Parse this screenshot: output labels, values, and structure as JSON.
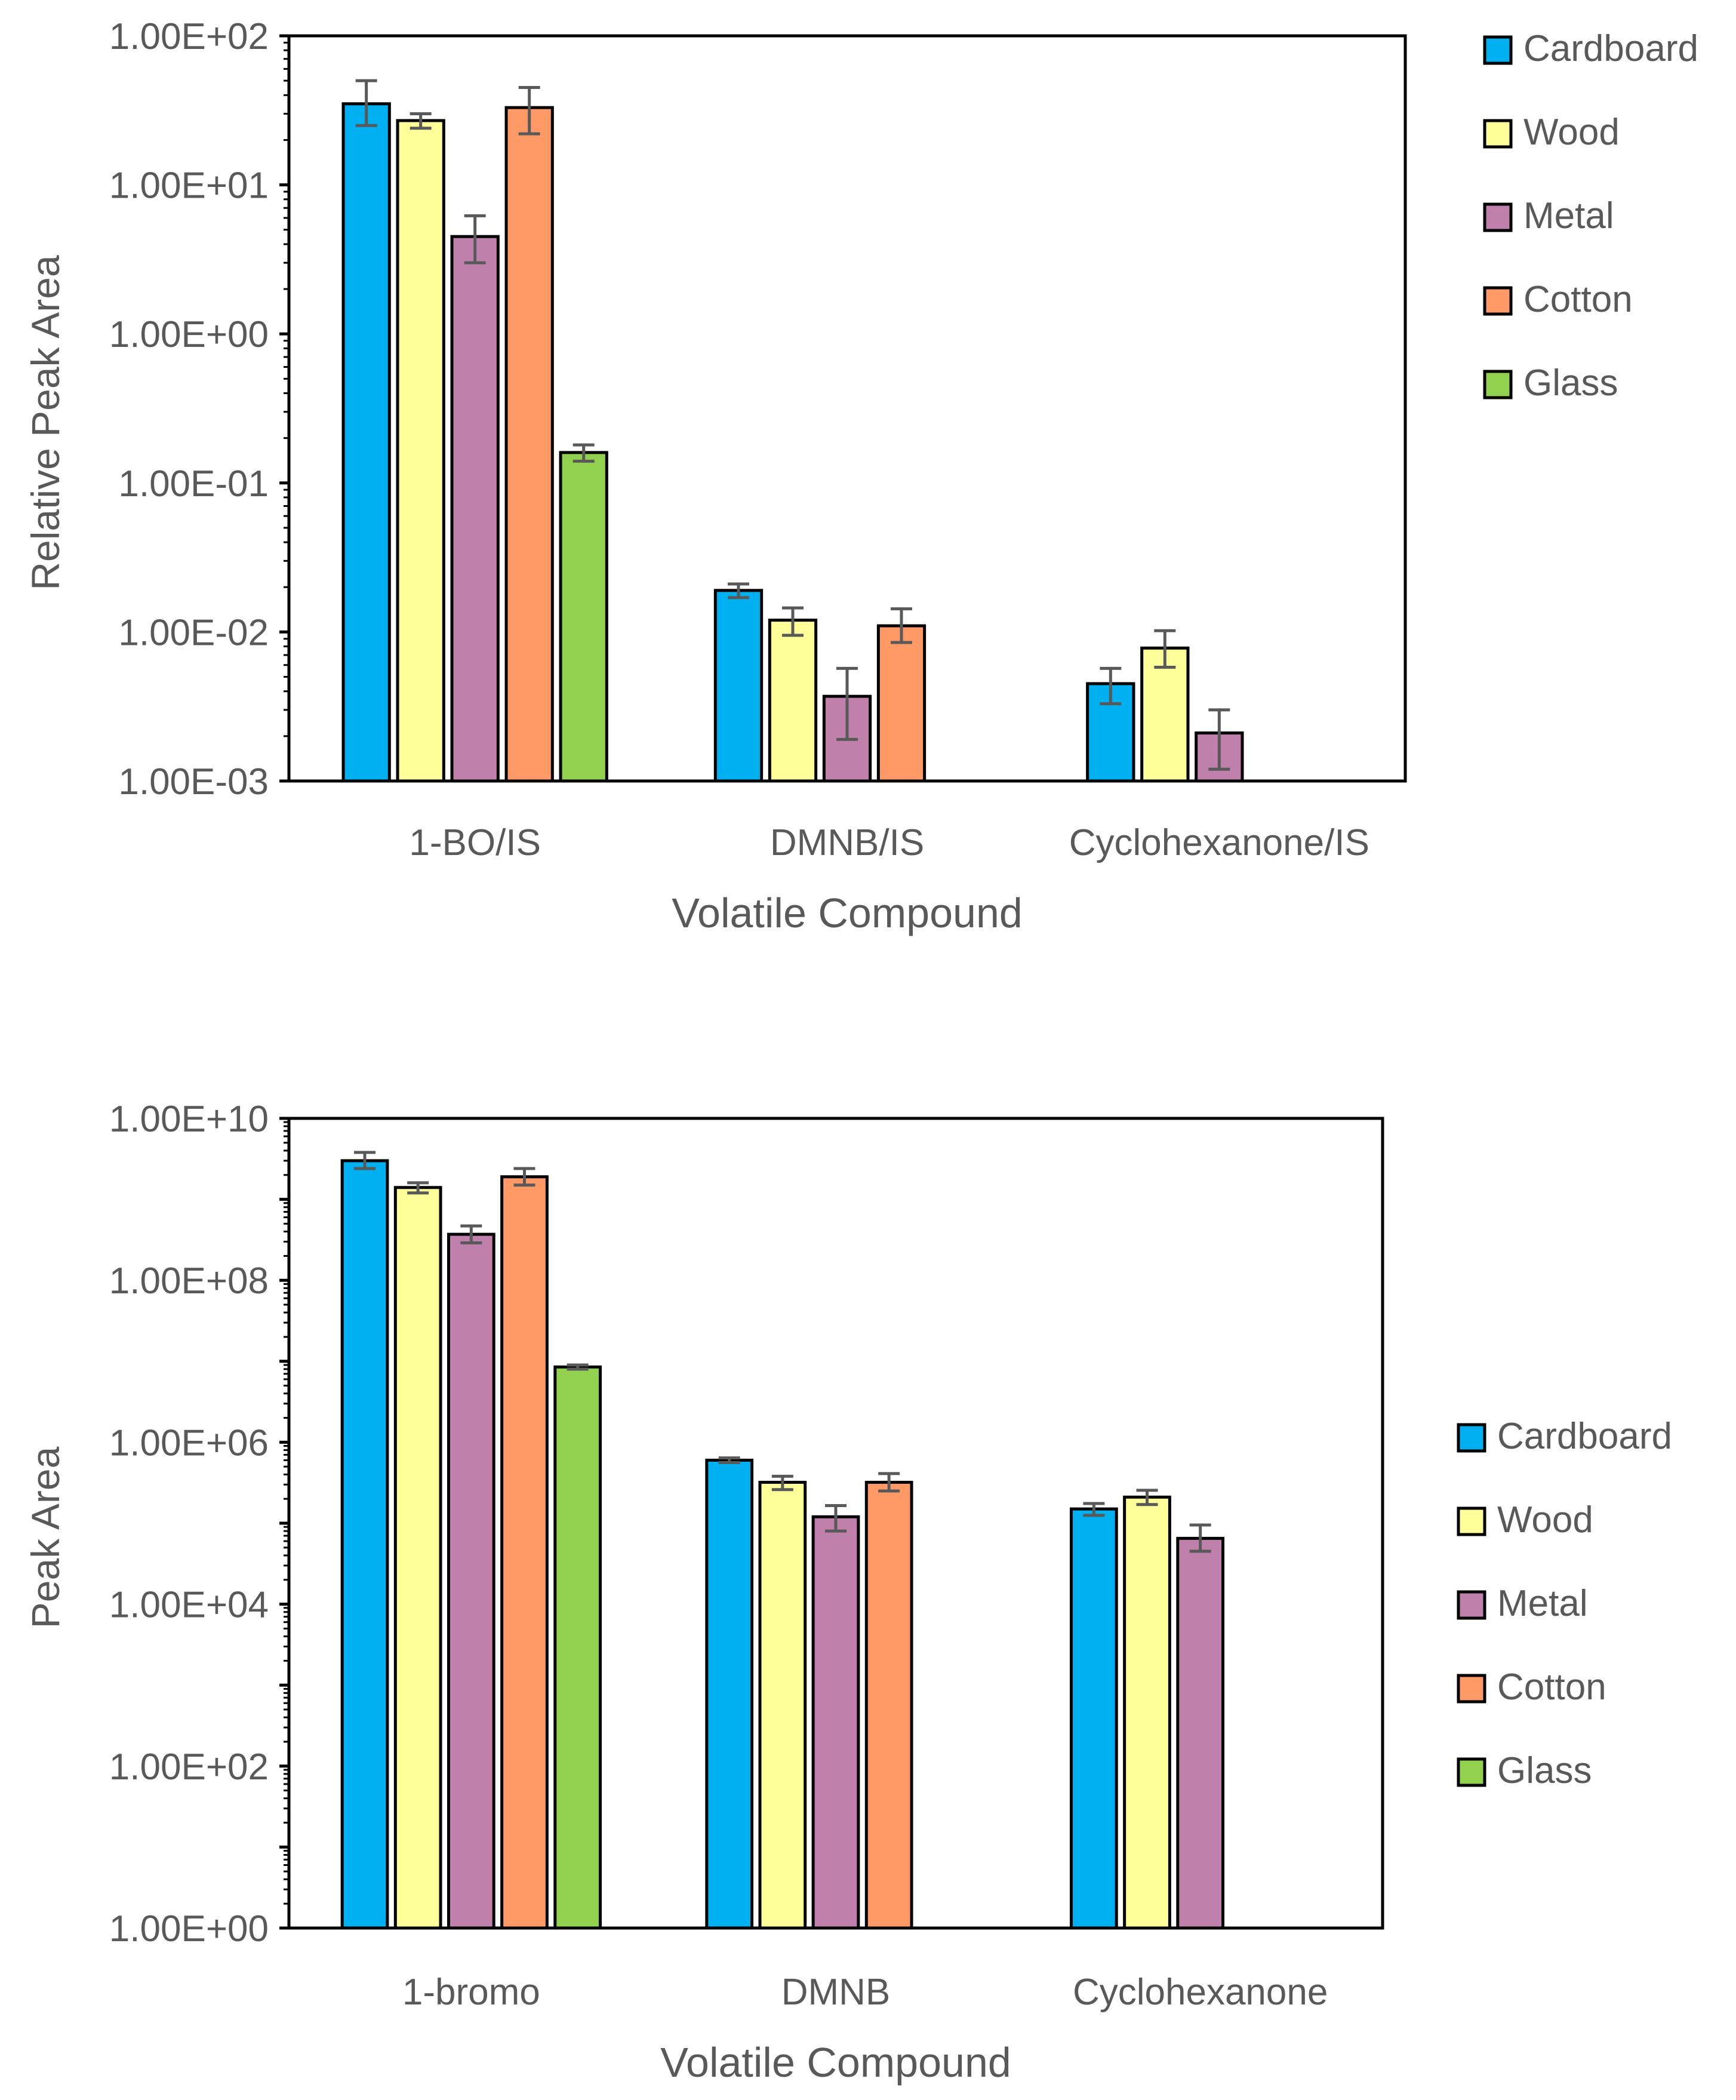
{
  "chart_data": [
    {
      "type": "bar",
      "scale": "log",
      "title": "",
      "xlabel": "Volatile Compound",
      "ylabel": "Relative Peak Area",
      "ylim": [
        0.001,
        100
      ],
      "y_ticks": [
        0.001,
        0.01,
        0.1,
        1,
        10,
        100
      ],
      "y_tick_labels": [
        "1.00E-03",
        "1.00E-02",
        "1.00E-01",
        "1.00E+00",
        "1.00E+01",
        "1.00E+02"
      ],
      "categories": [
        "1-BO/IS",
        "DMNB/IS",
        "Cyclohexanone/IS"
      ],
      "legend": {
        "position": "right",
        "entries": [
          "Cardboard",
          "Wood",
          "Metal",
          "Cotton",
          "Glass"
        ]
      },
      "series": [
        {
          "name": "Cardboard",
          "color": "#00B0F0",
          "values": [
            35,
            0.019,
            0.0045
          ],
          "errors_low": [
            25,
            0.017,
            0.0033
          ],
          "errors_high": [
            50,
            0.021,
            0.0057
          ]
        },
        {
          "name": "Wood",
          "color": "#FFFF99",
          "values": [
            27,
            0.012,
            0.0078
          ],
          "errors_low": [
            24,
            0.0095,
            0.0058
          ],
          "errors_high": [
            30,
            0.0145,
            0.0102
          ]
        },
        {
          "name": "Metal",
          "color": "#C080AC",
          "values": [
            4.5,
            0.0037,
            0.0021
          ],
          "errors_low": [
            3,
            0.0019,
            0.0012
          ],
          "errors_high": [
            6.2,
            0.0057,
            0.003
          ]
        },
        {
          "name": "Cotton",
          "color": "#FF9966",
          "values": [
            33,
            0.011,
            null
          ],
          "errors_low": [
            22,
            0.0085,
            null
          ],
          "errors_high": [
            45,
            0.0143,
            null
          ]
        },
        {
          "name": "Glass",
          "color": "#92D050",
          "values": [
            0.16,
            null,
            null
          ],
          "errors_low": [
            0.14,
            null,
            null
          ],
          "errors_high": [
            0.18,
            null,
            null
          ]
        }
      ]
    },
    {
      "type": "bar",
      "scale": "log",
      "title": "",
      "xlabel": "Volatile Compound",
      "ylabel": "Peak Area",
      "ylim": [
        1,
        10000000000
      ],
      "y_ticks": [
        1,
        100,
        10000,
        1000000,
        100000000,
        10000000000
      ],
      "y_tick_labels": [
        "1.00E+00",
        "1.00E+02",
        "1.00E+04",
        "1.00E+06",
        "1.00E+08",
        "1.00E+10"
      ],
      "categories": [
        "1-bromo",
        "DMNB",
        "Cyclohexanone"
      ],
      "legend": {
        "position": "right",
        "entries": [
          "Cardboard",
          "Wood",
          "Metal",
          "Cotton",
          "Glass"
        ]
      },
      "series": [
        {
          "name": "Cardboard",
          "color": "#00B0F0",
          "values": [
            3000000000,
            600000,
            150000
          ],
          "errors_low": [
            2400000000,
            560000,
            125000
          ],
          "errors_high": [
            3800000000,
            640000,
            175000
          ]
        },
        {
          "name": "Wood",
          "color": "#FFFF99",
          "values": [
            1400000000,
            320000,
            210000
          ],
          "errors_low": [
            1200000000,
            260000,
            170000
          ],
          "errors_high": [
            1600000000,
            380000,
            255000
          ]
        },
        {
          "name": "Metal",
          "color": "#C080AC",
          "values": [
            370000000,
            120000,
            65000
          ],
          "errors_low": [
            290000000,
            80000,
            45000
          ],
          "errors_high": [
            470000000,
            165000,
            95000
          ]
        },
        {
          "name": "Cotton",
          "color": "#FF9966",
          "values": [
            1900000000,
            320000,
            null
          ],
          "errors_low": [
            1500000000,
            250000,
            null
          ],
          "errors_high": [
            2400000000,
            410000,
            null
          ]
        },
        {
          "name": "Glass",
          "color": "#92D050",
          "values": [
            8500000,
            null,
            null
          ],
          "errors_low": [
            8000000,
            null,
            null
          ],
          "errors_high": [
            9000000,
            null,
            null
          ]
        }
      ]
    }
  ]
}
